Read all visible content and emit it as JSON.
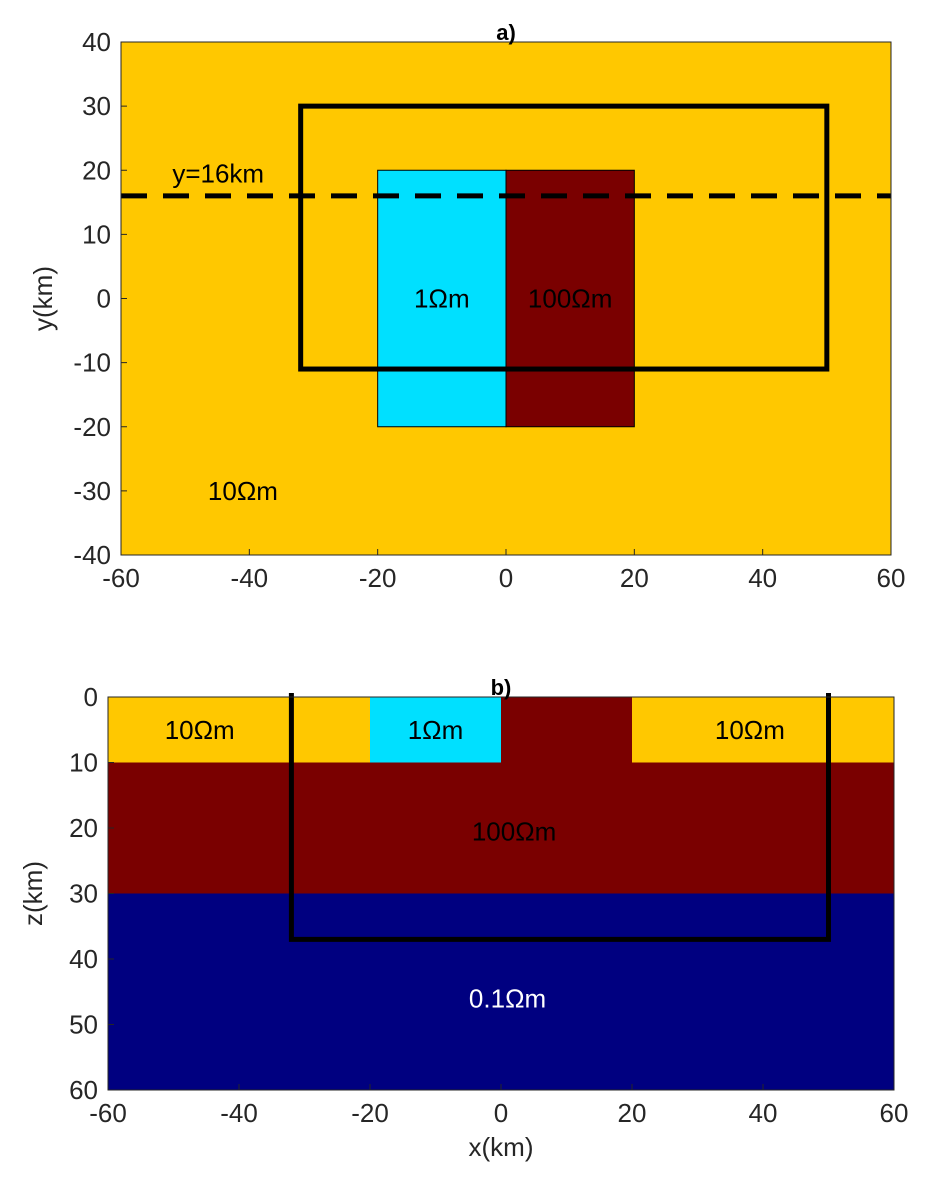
{
  "colors": {
    "res_10": "#ffc800",
    "res_1": "#00e0ff",
    "res_100": "#7a0000",
    "res_0_1": "#000080",
    "frame": "#000000",
    "label_dark": "#000000",
    "label_light": "#ffffff"
  },
  "chart_data": [
    {
      "type": "diagram",
      "title": "a)",
      "xlabel": "",
      "ylabel": "y(km)",
      "xlim": [
        -60,
        60
      ],
      "ylim": [
        -40,
        40
      ],
      "y_inverted": false,
      "xticks": [
        -60,
        -40,
        -20,
        0,
        20,
        40,
        60
      ],
      "yticks": [
        -40,
        -30,
        -20,
        -10,
        0,
        10,
        20,
        30,
        40
      ],
      "background_color": "res_10",
      "blocks": [
        {
          "name": "block-1ohm",
          "x0": -20,
          "x1": 0,
          "y0": -20,
          "y1": 20,
          "color": "res_1"
        },
        {
          "name": "block-100ohm",
          "x0": 0,
          "x1": 20,
          "y0": -20,
          "y1": 20,
          "color": "res_100"
        }
      ],
      "boundary": {
        "x0": -32,
        "x1": 50,
        "y0": -11,
        "y1": 30
      },
      "profile_line": {
        "y": 16,
        "label": "y=16km",
        "label_x": -52,
        "label_y": 19.5
      },
      "labels": [
        {
          "name": "label-1ohm",
          "text": "1Ωm",
          "x": -10,
          "y": 0,
          "tone": "label_dark"
        },
        {
          "name": "label-100ohm",
          "text": "100Ωm",
          "x": 10,
          "y": 0,
          "tone": "label_dark"
        },
        {
          "name": "label-10ohm",
          "text": "10Ωm",
          "x": -41,
          "y": -30,
          "tone": "label_dark"
        }
      ]
    },
    {
      "type": "diagram",
      "title": "b)",
      "xlabel": "x(km)",
      "ylabel": "z(km)",
      "xlim": [
        -60,
        60
      ],
      "ylim": [
        0,
        60
      ],
      "y_inverted": true,
      "xticks": [
        -60,
        -40,
        -20,
        0,
        20,
        40,
        60
      ],
      "yticks": [
        0,
        10,
        20,
        30,
        40,
        50,
        60
      ],
      "background_color": "res_10",
      "blocks": [
        {
          "name": "layer-100ohm",
          "x0": -60,
          "x1": 60,
          "y0": 10,
          "y1": 30,
          "color": "res_100"
        },
        {
          "name": "layer-0-1ohm",
          "x0": -60,
          "x1": 60,
          "y0": 30,
          "y1": 60,
          "color": "res_0_1"
        },
        {
          "name": "block-1ohm",
          "x0": -20,
          "x1": 0,
          "y0": 0,
          "y1": 10,
          "color": "res_1"
        },
        {
          "name": "block-100ohm-top",
          "x0": 0,
          "x1": 20,
          "y0": 0,
          "y1": 10,
          "color": "res_100"
        }
      ],
      "boundary_open_top": {
        "x0": -32,
        "x1": 50,
        "y0": 0,
        "y1": 37
      },
      "labels": [
        {
          "name": "label-10ohm-left",
          "text": "10Ωm",
          "x": -46,
          "y": 5,
          "tone": "label_dark"
        },
        {
          "name": "label-1ohm",
          "text": "1Ωm",
          "x": -10,
          "y": 5,
          "tone": "label_dark"
        },
        {
          "name": "label-10ohm-right",
          "text": "10Ωm",
          "x": 38,
          "y": 5,
          "tone": "label_dark"
        },
        {
          "name": "label-100ohm",
          "text": "100Ωm",
          "x": 2,
          "y": 20.5,
          "tone": "label_dark"
        },
        {
          "name": "label-0-1ohm",
          "text": "0.1Ωm",
          "x": 1,
          "y": 46,
          "tone": "label_light"
        }
      ]
    }
  ]
}
